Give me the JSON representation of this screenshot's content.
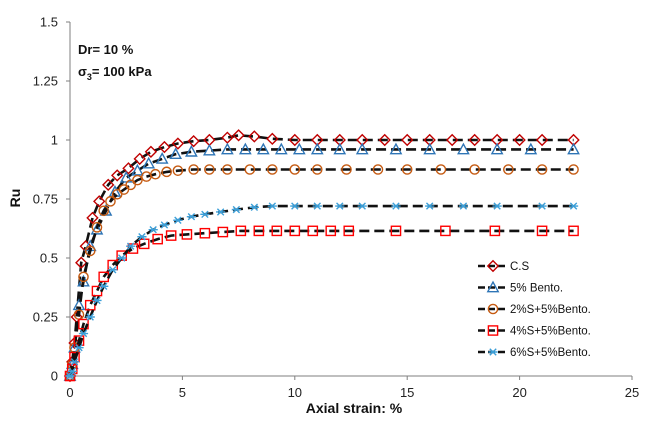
{
  "chart_data": {
    "type": "line",
    "xlabel": "Axial strain: %",
    "ylabel": "Ru",
    "xlim": [
      0,
      25
    ],
    "ylim": [
      0,
      1.5
    ],
    "x_ticks": [
      "0",
      "5",
      "10",
      "15",
      "20",
      "25"
    ],
    "y_ticks": [
      "0",
      "0.25",
      "0.5",
      "0.75",
      "1",
      "1.25",
      "1.5"
    ],
    "grid": false,
    "legend_position": "bottom-right",
    "annotations": {
      "dr": "Dr= 10 %",
      "sigma_main": "σ",
      "sigma_sub": "3",
      "sigma_rest": "= 100 kPa"
    },
    "series": [
      {
        "name": "C.S",
        "color": "#c00000",
        "marker": "diamond",
        "x": [
          0,
          0.1,
          0.2,
          0.3,
          0.5,
          0.7,
          1,
          1.3,
          1.7,
          2.1,
          2.6,
          3.1,
          3.6,
          4.2,
          4.8,
          5.5,
          6.2,
          7,
          7.5,
          8.2,
          9,
          10,
          11,
          12,
          13,
          14,
          15,
          16,
          17,
          18,
          19,
          20,
          21,
          22.4
        ],
        "y": [
          0,
          0.06,
          0.14,
          0.25,
          0.48,
          0.55,
          0.67,
          0.74,
          0.81,
          0.85,
          0.88,
          0.92,
          0.95,
          0.97,
          0.985,
          0.995,
          1.0,
          1.01,
          1.02,
          1.015,
          1.005,
          1.0,
          1.0,
          1.0,
          1.0,
          1.0,
          1.0,
          1.0,
          1.0,
          1.0,
          1.0,
          1.0,
          1.0,
          1.0
        ]
      },
      {
        "name": "5% Bento.",
        "color": "#2e75b6",
        "marker": "triangle",
        "x": [
          0,
          0.1,
          0.2,
          0.4,
          0.6,
          0.9,
          1.2,
          1.6,
          2.0,
          2.5,
          3.0,
          3.5,
          4.1,
          4.7,
          5.4,
          6.2,
          7.0,
          7.8,
          8.6,
          9.4,
          10.2,
          11,
          12,
          13,
          14.5,
          16,
          17.5,
          19,
          20.5,
          22.4
        ],
        "y": [
          0,
          0.05,
          0.12,
          0.3,
          0.4,
          0.55,
          0.62,
          0.7,
          0.78,
          0.84,
          0.87,
          0.9,
          0.92,
          0.94,
          0.95,
          0.955,
          0.96,
          0.96,
          0.96,
          0.96,
          0.96,
          0.96,
          0.96,
          0.96,
          0.96,
          0.96,
          0.96,
          0.96,
          0.96,
          0.96
        ]
      },
      {
        "name": "2%S+5%Bento.",
        "color": "#c55a11",
        "marker": "circle",
        "x": [
          0,
          0.1,
          0.2,
          0.4,
          0.6,
          0.9,
          1.2,
          1.5,
          1.8,
          2.1,
          2.4,
          2.7,
          3.0,
          3.4,
          3.8,
          4.3,
          4.8,
          5.5,
          6.2,
          7,
          8,
          9,
          10,
          11,
          12.3,
          13.7,
          15,
          16.5,
          18,
          19.5,
          21,
          22.4
        ],
        "y": [
          0,
          0.05,
          0.12,
          0.26,
          0.42,
          0.53,
          0.63,
          0.7,
          0.74,
          0.77,
          0.79,
          0.81,
          0.83,
          0.845,
          0.855,
          0.865,
          0.87,
          0.875,
          0.875,
          0.875,
          0.875,
          0.875,
          0.875,
          0.875,
          0.875,
          0.875,
          0.875,
          0.875,
          0.875,
          0.875,
          0.875,
          0.875
        ]
      },
      {
        "name": "4%S+5%Bento.",
        "color": "#ff0000",
        "marker": "square",
        "x": [
          0,
          0.1,
          0.2,
          0.4,
          0.6,
          0.9,
          1.2,
          1.5,
          1.9,
          2.3,
          2.8,
          3.3,
          3.9,
          4.5,
          5.2,
          6.0,
          6.8,
          7.6,
          8.4,
          9.2,
          10.0,
          10.8,
          11.6,
          12.4,
          14.5,
          16.7,
          18.9,
          21,
          22.4
        ],
        "y": [
          0,
          0.03,
          0.08,
          0.15,
          0.22,
          0.3,
          0.36,
          0.42,
          0.47,
          0.51,
          0.54,
          0.56,
          0.58,
          0.595,
          0.6,
          0.605,
          0.61,
          0.615,
          0.615,
          0.615,
          0.615,
          0.615,
          0.615,
          0.615,
          0.615,
          0.615,
          0.615,
          0.615,
          0.615
        ]
      },
      {
        "name": "6%S+5%Bento.",
        "color": "#3c9fd8",
        "marker": "star",
        "x": [
          0,
          0.1,
          0.2,
          0.4,
          0.6,
          0.9,
          1.2,
          1.5,
          1.9,
          2.3,
          2.7,
          3.2,
          3.7,
          4.2,
          4.8,
          5.4,
          6.0,
          6.7,
          7.4,
          8.2,
          9,
          10,
          11,
          12,
          13,
          14.5,
          16,
          17.5,
          19,
          21,
          22.4
        ],
        "y": [
          0,
          0.02,
          0.06,
          0.12,
          0.18,
          0.25,
          0.32,
          0.38,
          0.45,
          0.5,
          0.55,
          0.59,
          0.62,
          0.64,
          0.66,
          0.675,
          0.685,
          0.695,
          0.705,
          0.715,
          0.72,
          0.72,
          0.72,
          0.72,
          0.72,
          0.72,
          0.72,
          0.72,
          0.72,
          0.72,
          0.72
        ]
      }
    ]
  }
}
